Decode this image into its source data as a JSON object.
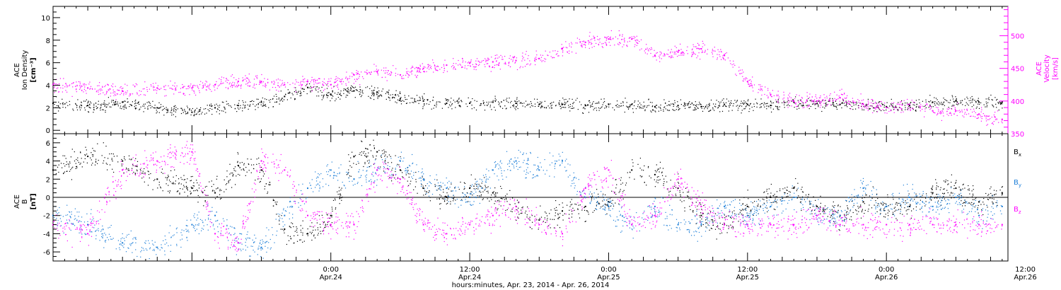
{
  "colors": {
    "black": "#000000",
    "magenta": "#ff00ff",
    "blue": "#1e7fd8",
    "axis": "#000000"
  },
  "xaxis": {
    "title": "hours:minutes, Apr. 23, 2014 - Apr. 26, 2014",
    "range_hours": [
      0,
      82.5
    ],
    "ticks": [
      {
        "hours": 24,
        "time": "0:00",
        "date": "Apr.24"
      },
      {
        "hours": 36,
        "time": "12:00",
        "date": "Apr.24"
      },
      {
        "hours": 48,
        "time": "0:00",
        "date": "Apr.25"
      },
      {
        "hours": 60,
        "time": "12:00",
        "date": "Apr.25"
      },
      {
        "hours": 72,
        "time": "0:00",
        "date": "Apr.26"
      },
      {
        "hours": 84,
        "time": "12:00",
        "date": "Apr.26"
      }
    ]
  },
  "panel1": {
    "left_label": [
      "ACE",
      "Ion Density",
      "[cm⁻³]"
    ],
    "right_label": [
      "ACE",
      "Velocity",
      "[km/s]"
    ],
    "left_ticks": [
      "0",
      "2",
      "4",
      "6",
      "8",
      "10"
    ],
    "right_ticks": [
      "350",
      "400",
      "450",
      "500"
    ]
  },
  "panel2": {
    "left_label": [
      "ACE",
      "B",
      "[nT]"
    ],
    "ticks": [
      "-6",
      "-4",
      "-2",
      "0",
      "2",
      "4",
      "6"
    ],
    "legend": [
      {
        "text": "B",
        "sub": "x",
        "color_key": "black"
      },
      {
        "text": "B",
        "sub": "y",
        "color_key": "blue"
      },
      {
        "text": "B",
        "sub": "z",
        "color_key": "magenta"
      }
    ]
  },
  "chart_data": [
    {
      "type": "scatter",
      "title": "",
      "xlabel": "hours:minutes, Apr. 23, 2014 - Apr. 26, 2014",
      "x_unit": "hours since Apr. 23, 2014 00:00",
      "xlim": [
        0,
        82.5
      ],
      "y_axes": [
        {
          "side": "left",
          "label": "ACE Ion Density [cm⁻³]",
          "ylim": [
            -0.3,
            11
          ]
        },
        {
          "side": "right",
          "label": "ACE Velocity [km/s]",
          "ylim": [
            350,
            545
          ]
        }
      ],
      "series": [
        {
          "axis": "left",
          "color_key": "black",
          "x": [
            0,
            3,
            6,
            9,
            12,
            14,
            16,
            18,
            20,
            22,
            24,
            26,
            28,
            30,
            32,
            34,
            36,
            38,
            40,
            42,
            44,
            46,
            48,
            50,
            52,
            54,
            56,
            58,
            60,
            62,
            64,
            66,
            68,
            70,
            72,
            74,
            76,
            78,
            80,
            82
          ],
          "y": [
            2.4,
            2.2,
            2.5,
            2.0,
            1.6,
            2.0,
            2.2,
            2.5,
            3.0,
            3.8,
            3.2,
            3.5,
            3.4,
            2.8,
            2.6,
            2.4,
            2.4,
            2.5,
            2.4,
            2.3,
            2.3,
            2.2,
            2.3,
            2.3,
            2.1,
            2.2,
            2.1,
            2.3,
            2.3,
            2.2,
            2.5,
            2.4,
            2.3,
            2.3,
            2.1,
            2.2,
            2.5,
            2.6,
            2.5,
            2.5
          ]
        },
        {
          "axis": "right",
          "color_key": "magenta",
          "x": [
            0,
            3,
            6,
            9,
            12,
            14,
            16,
            18,
            20,
            22,
            24,
            26,
            28,
            30,
            32,
            34,
            36,
            38,
            40,
            42,
            44,
            46,
            48,
            50,
            52,
            54,
            56,
            58,
            60,
            62,
            64,
            66,
            68,
            70,
            72,
            74,
            76,
            78,
            80,
            82
          ],
          "y": [
            425,
            420,
            415,
            420,
            420,
            425,
            430,
            430,
            425,
            430,
            425,
            440,
            445,
            440,
            450,
            455,
            458,
            460,
            462,
            465,
            480,
            490,
            495,
            495,
            470,
            475,
            480,
            470,
            430,
            410,
            400,
            400,
            405,
            395,
            390,
            395,
            385,
            385,
            380,
            372
          ]
        }
      ]
    },
    {
      "type": "scatter",
      "title": "",
      "xlabel": "hours:minutes, Apr. 23, 2014 - Apr. 26, 2014",
      "x_unit": "hours since Apr. 23, 2014 00:00",
      "xlim": [
        0,
        82.5
      ],
      "ylabel": "ACE B [nT]",
      "ylim": [
        -7,
        7
      ],
      "series": [
        {
          "name": "Bx",
          "color_key": "black",
          "x": [
            0,
            3,
            6,
            9,
            12,
            14,
            16,
            18,
            20,
            22,
            24,
            26,
            28,
            30,
            32,
            34,
            36,
            38,
            40,
            42,
            44,
            46,
            48,
            50,
            52,
            54,
            56,
            58,
            60,
            62,
            64,
            66,
            68,
            70,
            72,
            74,
            76,
            78,
            80,
            82
          ],
          "y": [
            3,
            4.5,
            4,
            2,
            1,
            0.5,
            3.5,
            3,
            -3.5,
            -4,
            -2,
            4.5,
            5,
            3,
            1,
            0,
            1,
            0.5,
            -1,
            -2.5,
            -1.5,
            -1,
            -0.5,
            3,
            2.5,
            1,
            -2,
            -3,
            -1,
            0,
            1,
            -1,
            -2,
            -0.5,
            -1,
            -1,
            0.5,
            1,
            -0.5,
            0.5
          ]
        },
        {
          "name": "By",
          "color_key": "blue",
          "x": [
            0,
            3,
            6,
            9,
            12,
            14,
            16,
            18,
            20,
            22,
            24,
            26,
            28,
            30,
            32,
            34,
            36,
            38,
            40,
            42,
            44,
            46,
            48,
            50,
            52,
            54,
            56,
            58,
            60,
            62,
            64,
            66,
            68,
            70,
            72,
            74,
            76,
            78,
            80,
            82
          ],
          "y": [
            -2,
            -3,
            -5,
            -5.5,
            -3,
            -2,
            -5,
            -5.5,
            -2,
            1,
            3,
            2,
            3,
            4,
            2,
            1,
            0,
            3,
            4,
            3,
            4,
            0,
            -1,
            -3,
            -1,
            -3,
            -3,
            -1,
            -2,
            -1,
            0,
            -2,
            -2,
            1,
            -1,
            0,
            -1,
            0,
            -2,
            -1
          ]
        },
        {
          "name": "Bz",
          "color_key": "magenta",
          "x": [
            0,
            3,
            6,
            9,
            12,
            14,
            16,
            18,
            20,
            22,
            24,
            26,
            28,
            30,
            32,
            34,
            36,
            38,
            40,
            42,
            44,
            46,
            48,
            50,
            52,
            54,
            56,
            58,
            60,
            62,
            64,
            66,
            68,
            70,
            72,
            74,
            76,
            78,
            80,
            82
          ],
          "y": [
            -3,
            -4,
            3,
            4,
            5,
            -4,
            -5,
            4,
            3,
            -2,
            -3,
            -3,
            3,
            2,
            -3,
            -4,
            -3,
            -2,
            -1,
            -3,
            -4,
            1,
            3,
            -3,
            -2,
            2,
            -1,
            -3,
            -3,
            -3,
            -3,
            -2,
            -3,
            -3,
            -3,
            -3,
            -3,
            -3,
            -3,
            -3
          ]
        }
      ]
    }
  ]
}
